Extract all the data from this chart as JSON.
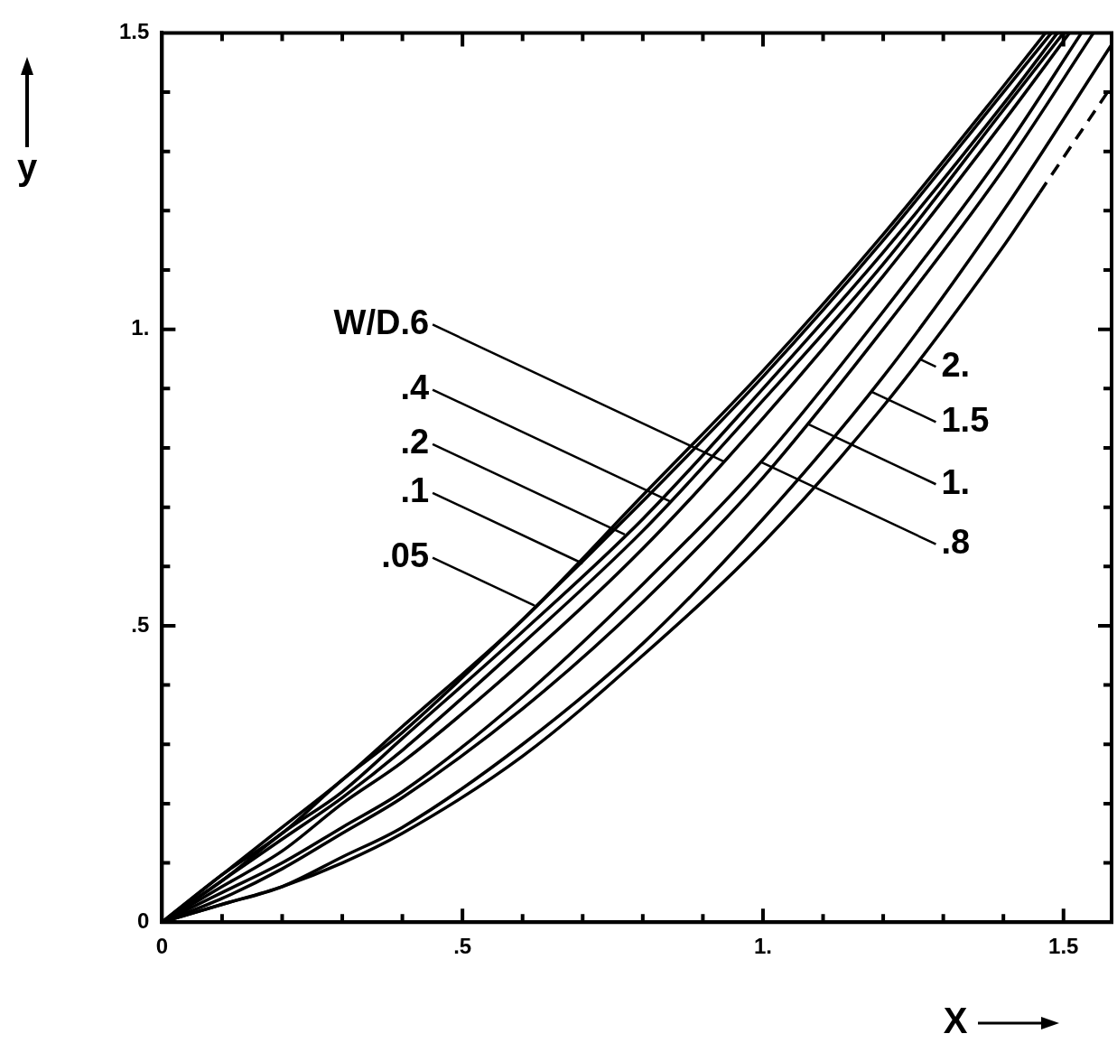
{
  "chart_data": {
    "type": "line",
    "xlabel": "X",
    "ylabel": "y",
    "xlim": [
      0,
      1.58
    ],
    "ylim": [
      0,
      1.5
    ],
    "xticks": [
      0,
      {
        "value": 0.1,
        "label": null
      },
      {
        "value": 0.2,
        "label": null
      },
      {
        "value": 0.3,
        "label": null
      },
      {
        "value": 0.4,
        "label": null
      },
      {
        "value": 0.5,
        "label": ".5"
      },
      {
        "value": 0.6,
        "label": null
      },
      {
        "value": 0.7,
        "label": null
      },
      {
        "value": 0.8,
        "label": null
      },
      {
        "value": 0.9,
        "label": null
      },
      {
        "value": 1,
        "label": "1."
      },
      {
        "value": 1.1,
        "label": null
      },
      {
        "value": 1.2,
        "label": null
      },
      {
        "value": 1.3,
        "label": null
      },
      {
        "value": 1.4,
        "label": null
      },
      1.5
    ],
    "yticks": [
      0,
      {
        "value": 0.1,
        "label": null
      },
      {
        "value": 0.2,
        "label": null
      },
      {
        "value": 0.3,
        "label": null
      },
      {
        "value": 0.4,
        "label": null
      },
      {
        "value": 0.5,
        "label": ".5"
      },
      {
        "value": 0.6,
        "label": null
      },
      {
        "value": 0.7,
        "label": null
      },
      {
        "value": 0.8,
        "label": null
      },
      {
        "value": 0.9,
        "label": null
      },
      {
        "value": 1,
        "label": "1."
      },
      {
        "value": 1.1,
        "label": null
      },
      {
        "value": 1.2,
        "label": null
      },
      {
        "value": 1.3,
        "label": null
      },
      {
        "value": 1.4,
        "label": null
      },
      1.5
    ],
    "marker": "none",
    "line_style": "solid",
    "series": [
      {
        "color": "#000000",
        "x": [
          0,
          0.1,
          0.2,
          0.3,
          0.4,
          0.6,
          0.8,
          1.0,
          1.2,
          1.4,
          1.47
        ],
        "values": [
          0,
          0.08,
          0.16,
          0.24,
          0.33,
          0.51,
          0.72,
          0.93,
          1.16,
          1.41,
          1.5
        ]
      },
      {
        "color": "#000000",
        "x": [
          0,
          0.1,
          0.2,
          0.3,
          0.4,
          0.6,
          0.8,
          1.0,
          1.2,
          1.4,
          1.48
        ],
        "values": [
          0,
          0.08,
          0.15,
          0.24,
          0.32,
          0.51,
          0.71,
          0.92,
          1.15,
          1.4,
          1.5
        ]
      },
      {
        "color": "#000000",
        "x": [
          0,
          0.1,
          0.2,
          0.3,
          0.4,
          0.6,
          0.8,
          1.0,
          1.2,
          1.4,
          1.49
        ],
        "values": [
          0,
          0.07,
          0.15,
          0.22,
          0.31,
          0.49,
          0.68,
          0.9,
          1.13,
          1.38,
          1.5
        ]
      },
      {
        "color": "#000000",
        "x": [
          0,
          0.1,
          0.2,
          0.3,
          0.4,
          0.6,
          0.8,
          1.0,
          1.2,
          1.4,
          1.5
        ],
        "values": [
          0,
          0.07,
          0.14,
          0.21,
          0.29,
          0.47,
          0.66,
          0.88,
          1.11,
          1.37,
          1.5
        ]
      },
      {
        "color": "#000000",
        "x": [
          0,
          0.1,
          0.2,
          0.3,
          0.4,
          0.6,
          0.8,
          1.0,
          1.2,
          1.4,
          1.51
        ],
        "values": [
          0,
          0.06,
          0.12,
          0.2,
          0.27,
          0.44,
          0.63,
          0.85,
          1.09,
          1.35,
          1.5
        ]
      },
      {
        "color": "#000000",
        "x": [
          0,
          0.1,
          0.2,
          0.3,
          0.4,
          0.6,
          0.8,
          1.0,
          1.2,
          1.4,
          1.53
        ],
        "values": [
          0,
          0.05,
          0.1,
          0.16,
          0.22,
          0.38,
          0.57,
          0.78,
          1.03,
          1.3,
          1.5
        ]
      },
      {
        "color": "#000000",
        "x": [
          0,
          0.1,
          0.2,
          0.3,
          0.4,
          0.6,
          0.8,
          1.0,
          1.2,
          1.4,
          1.55
        ],
        "values": [
          0,
          0.04,
          0.09,
          0.15,
          0.21,
          0.36,
          0.54,
          0.75,
          1.0,
          1.27,
          1.5
        ]
      },
      {
        "color": "#000000",
        "x": [
          0,
          0.1,
          0.2,
          0.3,
          0.4,
          0.6,
          0.8,
          1.0,
          1.2,
          1.4,
          1.58
        ],
        "values": [
          0,
          0.03,
          0.06,
          0.11,
          0.16,
          0.3,
          0.47,
          0.68,
          0.92,
          1.2,
          1.48
        ]
      },
      {
        "color": "#000000",
        "x": [
          0,
          0.1,
          0.2,
          0.3,
          0.4,
          0.6,
          0.8,
          1.0,
          1.2,
          1.4,
          1.46
        ],
        "values": [
          0,
          0.03,
          0.06,
          0.1,
          0.15,
          0.28,
          0.45,
          0.64,
          0.87,
          1.14,
          1.23
        ]
      },
      {
        "color": "#000000",
        "line_style": "dashed",
        "x": [
          1.46,
          1.58
        ],
        "values": [
          1.23,
          1.41
        ]
      }
    ],
    "annotations": [
      {
        "text": ".05",
        "x": 0.62,
        "y": 0.534
      },
      {
        "text": ".1",
        "x": 0.7,
        "y": 0.605
      },
      {
        "text": ".2",
        "x": 0.77,
        "y": 0.654
      },
      {
        "text": ".4",
        "x": 0.845,
        "y": 0.71
      },
      {
        "text": "W/D.6",
        "x": 0.935,
        "y": 0.777
      },
      {
        "text": ".8",
        "x": 0.995,
        "y": 0.777
      },
      {
        "text": "1.",
        "x": 1.075,
        "y": 0.84
      },
      {
        "text": "1.5",
        "x": 1.18,
        "y": 0.895
      },
      {
        "text": "2.",
        "x": 1.26,
        "y": 0.95
      }
    ]
  }
}
